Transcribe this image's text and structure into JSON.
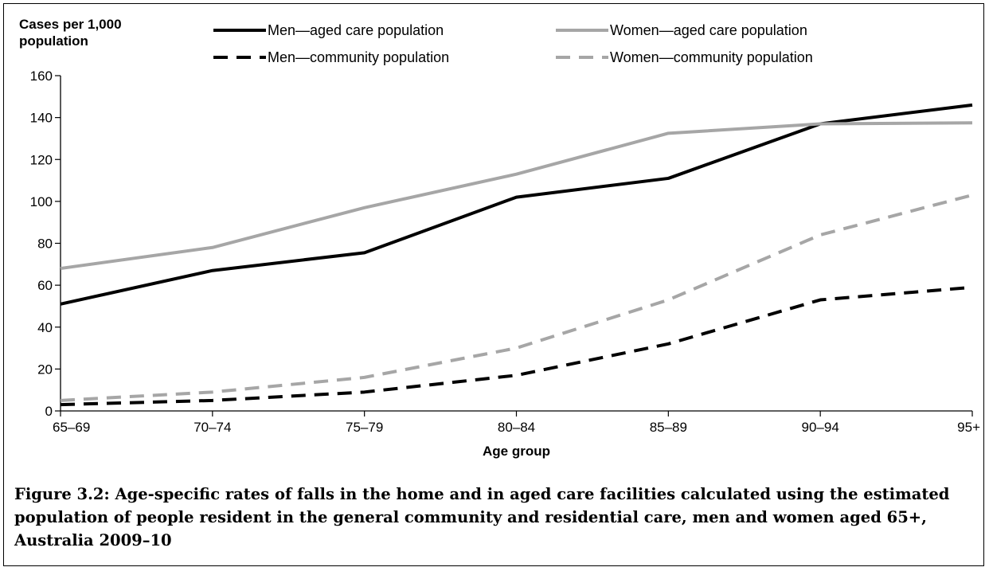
{
  "chart_data": {
    "type": "line",
    "ylabel_lines": [
      "Cases per 1,000",
      "population"
    ],
    "xlabel": "Age group",
    "categories": [
      "65–69",
      "70–74",
      "75–79",
      "80–84",
      "85–89",
      "90–94",
      "95+"
    ],
    "ylim": [
      0,
      160
    ],
    "yticks": [
      0,
      20,
      40,
      60,
      80,
      100,
      120,
      140,
      160
    ],
    "grid": false,
    "legend_position": "top",
    "series": [
      {
        "name": "Men—aged care population",
        "values": [
          51,
          67,
          75.5,
          102,
          111,
          137,
          146
        ],
        "color": "#000000",
        "dash": "solid"
      },
      {
        "name": "Women—aged care population",
        "values": [
          68,
          78,
          97,
          113,
          132.5,
          137,
          137.5
        ],
        "color": "#a6a6a6",
        "dash": "solid"
      },
      {
        "name": "Men—community population",
        "values": [
          3,
          5,
          9,
          17,
          32,
          53,
          59
        ],
        "color": "#000000",
        "dash": "dashed"
      },
      {
        "name": "Women—community population",
        "values": [
          5,
          9,
          16,
          30,
          53,
          84,
          103
        ],
        "color": "#a6a6a6",
        "dash": "dashed"
      }
    ]
  },
  "caption": "Figure 3.2: Age-specific rates of falls in the home and in aged care facilities calculated using the estimated population of people resident in the general community and residential care, men and women aged 65+, Australia 2009–10"
}
